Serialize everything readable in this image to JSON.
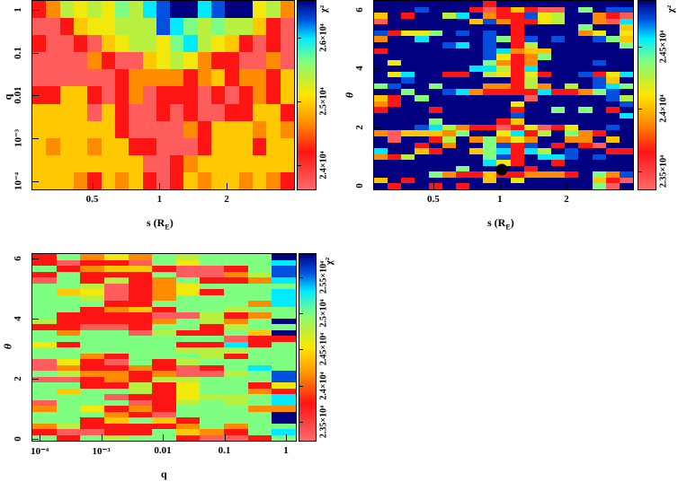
{
  "chart_data": [
    {
      "id": "top-left",
      "type": "heatmap",
      "xlabel": "s (R",
      "xlabel_sub": "E",
      "xlabel_close": ")",
      "ylabel": "q",
      "colorbar_label": "χ²",
      "x_scale": "log",
      "x_range": [
        0.27,
        4
      ],
      "y_scale": "log",
      "y_range": [
        6.5e-05,
        1.6
      ],
      "x_ticks": [
        {
          "value": 0.5,
          "label": "0.5"
        },
        {
          "value": 1,
          "label": "1"
        },
        {
          "value": 2,
          "label": "2"
        }
      ],
      "y_ticks": [
        {
          "value": 1,
          "label": "1"
        },
        {
          "value": 0.1,
          "label": "0.1"
        },
        {
          "value": 0.01,
          "label": "0.01"
        },
        {
          "value": 0.001,
          "label": "10⁻³"
        },
        {
          "value": 0.0001,
          "label": "10⁻⁴"
        }
      ],
      "colorbar": {
        "range": [
          2.36,
          2.66
        ],
        "unit": "×10⁴",
        "ticks": [
          {
            "value": 2.4,
            "label": "2.4×10⁴"
          },
          {
            "value": 2.5,
            "label": "2.5×10⁴"
          },
          {
            "value": 2.6,
            "label": "2.6×10⁴"
          }
        ]
      },
      "levels": {
        "r": 2.37,
        "R": 2.42,
        "o": 2.465,
        "y": 2.495,
        "Y": 2.515,
        "g": 2.54,
        "G": 2.565,
        "c": 2.6,
        "b": 2.63,
        "n": 2.66
      },
      "rows": [
        "RogYgYGgcbnncbnnYgo",
        "rrRyYYgggbcGgGggyRr",
        "RrrRryYggYGcgYyRrRr",
        "rrrroRrryYgYoRRrror",
        "rrrrrrRooooRoyRooRy",
        "RRyyRrRorRRRrRrRoRy",
        "yyyyryRrrRrRrrRRyyR",
        "yyyyyyRrrrroRyyyoyo",
        "yoyyoyyRRrrrRyyyRyy",
        "yyyyyyyyrrRoyyyyyyy",
        "yyyoRyoyRrRyoyyoyoR"
      ]
    },
    {
      "id": "top-right",
      "type": "heatmap",
      "xlabel": "s (R",
      "xlabel_sub": "E",
      "xlabel_close": ")",
      "ylabel": "θ",
      "colorbar_label": "χ²",
      "x_scale": "log",
      "x_range": [
        0.27,
        4
      ],
      "y_scale": "linear",
      "y_range": [
        -0.12,
        6.3
      ],
      "x_ticks": [
        {
          "value": 0.5,
          "label": "0.5"
        },
        {
          "value": 1,
          "label": "1"
        },
        {
          "value": 2,
          "label": "2"
        }
      ],
      "y_ticks": [
        {
          "value": 0,
          "label": "0"
        },
        {
          "value": 2,
          "label": "2"
        },
        {
          "value": 4,
          "label": "4"
        },
        {
          "value": 6,
          "label": "6"
        }
      ],
      "colorbar": {
        "range": [
          2.335,
          2.487
        ],
        "unit": "×10⁴",
        "ticks": [
          {
            "value": 2.35,
            "label": "2.35×10⁴"
          },
          {
            "value": 2.4,
            "label": "2.4×10⁴"
          },
          {
            "value": 2.45,
            "label": "2.45×10⁴"
          }
        ]
      },
      "best_fit_marker": {
        "s": 1.02,
        "theta": 0.55
      },
      "levels": {
        "r": 2.34,
        "R": 2.365,
        "o": 2.388,
        "y": 2.403,
        "Y": 2.414,
        "g": 2.426,
        "G": 2.438,
        "c": 2.457,
        "b": 2.472,
        "n": 2.487
      },
      "rows": [
        "nnnnnnnnRnnnnnnnnnn",
        "nnnbnnnRrRyRrrnGnbb",
        "ynRnngcnoRRbYgnnoRr",
        "rnnnnnnyboRRYgnnorc",
        "nnnnnnnnnnRnnnnGnny",
        "bRYYGnbnbnRnnnnoYnY",
        "onncnnnnbGRbnbnnbGy",
        "nnnnnbcnbnRgnnnnnnG",
        "RnnnnnnnbcoyynnnnnN",
        "nnnnnnnnbYRoGnnnnnn",
        "nYnnnnnnGoRonnnnbnn",
        "nnnnnnnccgRcnnnnnnn",
        "nYcnnRRngYRYRnnbRYc",
        "nnbnnnnnnnRgnnnnbyn",
        "GbnnGnnnooRgongnbcG",
        "nnGnnbcoRRRRcRRoGbn",
        "yRnGnnnnnnnrnnnnnbg",
        "oRnnnnnnnnYnnnnnnnb",
        "RnnnRnnnnnRnnGnGnRn",
        "nnnnnnnnnnbnnnnnnnc",
        "nnnnGnnnnRynnnnnnnn",
        "nnnbcgoRRrRYrRYnnbn",
        "oryyyoGnnYcRgnGoRnn",
        "nrnnRgnoGoYonnoonyn",
        "nnnRnonnGbRbnRnRrnn",
        "cnnyRnnyGcRcgnbnnRR",
        "oRgnnnnnGbRnccbnbnn",
        "nnnnnnnncYRnnRnnnnn",
        "nnnnnnGnnnnRnnnnnnn",
        "nnnnGoRRyRRoooRnGob",
        "ynRnnnnnynYnnnnnyRr",
        "nRnnRnRnnnnnnnnnGrn"
      ]
    },
    {
      "id": "bottom",
      "type": "heatmap",
      "xlabel": "q",
      "ylabel": "θ",
      "colorbar_label": "χ²",
      "x_scale": "log",
      "x_range": [
        7.6e-05,
        1.45
      ],
      "y_scale": "linear",
      "y_range": [
        -0.06,
        6.15
      ],
      "x_ticks": [
        {
          "value": 0.0001,
          "label": "10⁻⁴"
        },
        {
          "value": 0.001,
          "label": "10⁻³"
        },
        {
          "value": 0.01,
          "label": "0.01"
        },
        {
          "value": 0.1,
          "label": "0.1"
        },
        {
          "value": 1,
          "label": "1"
        }
      ],
      "y_ticks": [
        {
          "value": 0,
          "label": "0"
        },
        {
          "value": 2,
          "label": "2"
        },
        {
          "value": 4,
          "label": "4"
        },
        {
          "value": 6,
          "label": "6"
        }
      ],
      "colorbar": {
        "range": [
          2.323,
          2.583
        ],
        "unit": "×10⁴",
        "ticks": [
          {
            "value": 2.35,
            "label": "2.35×10⁴"
          },
          {
            "value": 2.4,
            "label": "2.4×10⁴"
          },
          {
            "value": 2.45,
            "label": "2.45×10⁴"
          },
          {
            "value": 2.5,
            "label": "2.5×10⁴"
          },
          {
            "value": 2.55,
            "label": "2.55×10⁴"
          }
        ]
      },
      "levels": {
        "r": 2.331,
        "R": 2.375,
        "o": 2.414,
        "y": 2.44,
        "Y": 2.458,
        "g": 2.479,
        "G": 2.5,
        "c": 2.531,
        "b": 2.557,
        "n": 2.583
      },
      "rows": [
        "RGoYoGgGGGn",
        "RrRRrGYGGGc",
        "GRoyyRrrRGb",
        "RGRRRGrrogb",
        "rGRgRoGRRoc",
        "GGgrRoYGGGG",
        "GyYrRoYRGGc",
        "GGgrRoGGGGc",
        "GGGRRGGGGoc",
        "GGRoyRGGgGG",
        "GRRRRrrgRoG",
        "gRRRRoGgoGn",
        "RRrrRGGRgGG",
        "GoGGrgRRGyn",
        "GGGGGGGGrRR",
        "YRGGGGRRcRG",
        "GGGGGGgggGG",
        "GGoRGGGgRGG",
        "rYRrGRgGGGG",
        "roRRoRrRGcG",
        "GgooRorrgGb",
        "rrRoRggGGGb",
        "GGRRgRYGGRY",
        "GyGGgRYGGoR",
        "GGGrRRYggGc",
        "rGGGrRgGgGc",
        "oGYRoRGGGoo",
        "GGGoRrGGGGn",
        "GGRyGyRGGGn",
        "ogRRRRoGoGG",
        "RrrRRGyoRGc",
        "GRGgGGRrrRG"
      ]
    }
  ]
}
